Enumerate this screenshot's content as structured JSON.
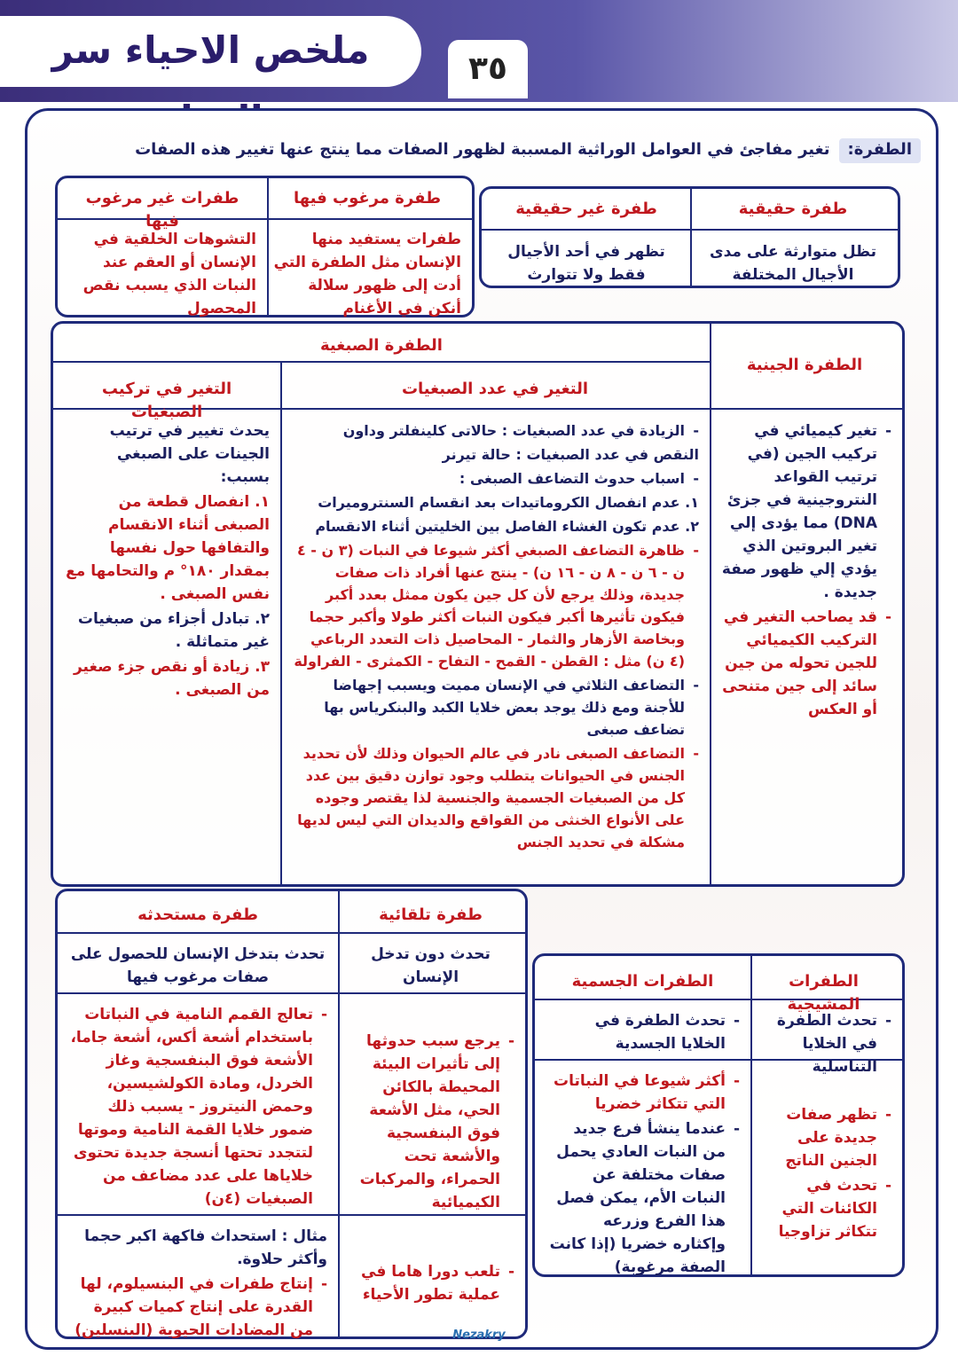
{
  "header": {
    "title": "ملخص الاحياء سر الحياة",
    "page_number": "٣٥"
  },
  "definition": {
    "label": "الطفرة:",
    "text": "تغير مفاجئ في العوامل الوراثية المسببة لظهور الصفات مما ينتج عنها تغيير هذه الصفات"
  },
  "real_table": {
    "headers": [
      "طفرة حقيقية",
      "طفرة غير حقيقية"
    ],
    "cells": [
      "تظل متوارثة على مدى الأجيال المختلفة",
      "تظهر في أحد الأجيال فقط ولا تتوارث"
    ]
  },
  "desire_table": {
    "headers": [
      "طفرة مرغوب فيها",
      "طفرات غير مرغوب فيها"
    ],
    "cells": [
      "طفرات يستفيد منها الإنسان مثل الطفرة التي أدت إلى ظهور سلالة أنكن في الأغنام",
      "التشوهات الخلقية في الإنسان أو العقم عند النبات الذي يسبب نقص المحصول"
    ]
  },
  "type_table": {
    "gene_header": "الطفرة الجينية",
    "chrom_header": "الطفرة الصبغية",
    "number_header": "التغير في عدد الصبغيات",
    "structure_header": "التغير في تركيب الصبغيات",
    "gene_items": [
      "تغير كيميائي في تركيب الجين (في ترتيب القواعد النتروجينية في جزئ DNA) مما يؤدى إلي تغير البروتين الذي يؤدي إلي ظهور صفة جديدة .",
      "قد يصاحب التغير في التركيب الكيميائي للجين تحوله من جين سائد إلى جين متنحى أو العكس"
    ],
    "number_items": [
      "الزيادة في عدد الصبغيات : حالاتى كلينفلتر وداون",
      "النقص في عدد الصبغيات : حالة تيرنر",
      "اسباب حدوث التضاعف الصبغى :",
      "١. عدم انفصال الكروماتيدات بعد انقسام السنترومیرات",
      "٢. عدم تكون الغشاء الفاصل بين الخليتين أثناء الانقسام",
      "ظاهرة التضاعف الصبغي أكثر شيوعا في النبات (٣ ن - ٤ ن - ٦ ن - ٨ ن - ١٦ ن) - ينتج عنها أفراد ذات صفات جديدة، وذلك يرجع لأن كل جين يكون ممثل بعدد أكبر فيكون تأثيرها أكبر فيكون النبات أكثر طولا وأكبر حجما وبخاصة الأزهار والثمار - المحاصيل ذات التعدد الرباعي (٤ ن) مثل : القطن - القمح - التفاح - الكمثرى - الفراولة",
      "التضاعف الثلاثي في الإنسان مميت ويسبب إجهاضا للأجنة ومع ذلك يوجد بعض خلايا الكبد والبنكرياس بها تضاعف صبغى",
      "التضاعف الصبغى نادر في عالم الحيوان وذلك لأن تحديد الجنس في الحيوانات يتطلب وجود توازن دقيق بين عدد كل من الصبغيات الجسمية والجنسية لذا يقتصر وجوده على الأنواع الخنثى من القواقع والديدان التي ليس لديها مشكلة في تحديد الجنس"
    ],
    "structure_items": [
      "يحدث تغيير في ترتيب الجينات على الصبغي بسبب:",
      "١. انفصال قطعة من الصبغى أثناء الانقسام والتفافها حول نفسها بمقدار ١٨٠° م والتحامها مع نفس الصبغى .",
      "٢. تبادل أجزاء من صبغيات غير متماثلة .",
      "٣. زيادة أو نقص جزء صغير من الصبغى ."
    ]
  },
  "origin_table": {
    "headers": [
      "طفرة تلقائية",
      "طفرة مستحدثه"
    ],
    "row1": [
      "تحدث دون تدخل الإنسان",
      "تحدث بتدخل الإنسان للحصول على صفات مرغوب فيها"
    ],
    "row2": [
      "يرجع سبب حدوثها إلى تأثيرات البيئة المحيطة بالكائن الحي، مثل الأشعة فوق البنفسجية والأشعة تحت الحمراء، والمركبات الكيميائية",
      "تعالج القمم النامية في النباتات باستخدام أشعة أكس، أشعة جاما، الأشعة فوق البنفسجية وغاز الخردل، ومادة الكولشيسين، وحمض النيتروز - يسبب ذلك ضمور خلايا القمة النامية وموتها لتتجدد تحتها أنسجة جديدة تحتوى خلاياها على عدد مضاعف من الصبغيات (٤ن)"
    ],
    "row3_spontaneous": "تلعب دورا هاما في عملية تطور الأحياء",
    "row3_induced": [
      "مثال : استحداث فاكهة اكبر حجما وأكثر حلاوة.",
      "إنتاج طفرات في البنسيلوم، لها القدرة على إنتاج كميات كبيرة من المضادات الحيوية (البنسلين)"
    ]
  },
  "cell_table": {
    "headers": [
      "الطفرات المشيجية",
      "الطفرات الجسمية"
    ],
    "row1": [
      "تحدث الطفرة في الخلايا التناسلية",
      "تحدث الطفرة في الخلايا الجسدية"
    ],
    "germinal_items": [
      "تظهر صفات جديدة على الجنين الناتج",
      "تحدث في الكائنات التي تتكاثر تزاوجيا"
    ],
    "somatic_items": [
      "أكثر شيوعا في النباتات التي تتكاثر خضريا",
      "عندما ينشأ فرع جديد من النبات العادي يحمل صفات مختلفة عن النبات الأم، يمكن فصل هذا الفرع وزرعه وإكثاره خضريا (إذا كانت الصفة مرغوبة)"
    ]
  },
  "logo": "Nezakry"
}
